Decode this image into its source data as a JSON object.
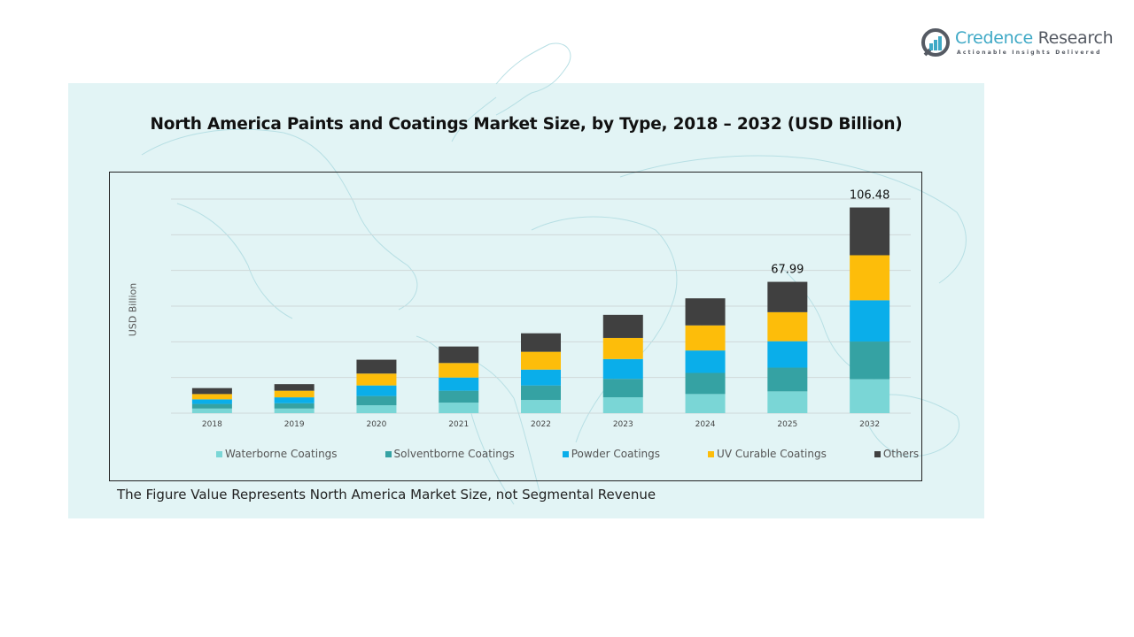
{
  "logo": {
    "name_part1": "Credence",
    "name_part2": " Research",
    "tagline": "Actionable Insights Delivered"
  },
  "footnote": "The Figure Value Represents North America Market Size, not Segmental Revenue",
  "colors": {
    "panel_background": "#e2f4f5",
    "Waterborne Coatings": "#7ad6d6",
    "Solventborne Coatings": "#35a2a3",
    "Powder Coatings": "#0aaeea",
    "UV Curable Coatings": "#fdbd0a",
    "Others": "#404040"
  },
  "chart_data": {
    "type": "bar",
    "stacked": true,
    "title": "North America Paints and Coatings Market Size, by Type, 2018 – 2032 (USD Billion)",
    "xlabel": "",
    "ylabel": "USD Billion",
    "categories": [
      "2018",
      "2019",
      "2020",
      "2021",
      "2022",
      "2023",
      "2024",
      "2025",
      "2032"
    ],
    "ylim": [
      0,
      120
    ],
    "gridlines": true,
    "y_tick_labels_shown": false,
    "legend_position": "bottom",
    "series": [
      {
        "name": "Waterborne Coatings",
        "values": [
          2.39,
          2.39,
          4.1,
          5.47,
          6.83,
          8.2,
          9.91,
          11.28,
          17.59
        ]
      },
      {
        "name": "Solventborne Coatings",
        "values": [
          2.39,
          2.73,
          4.78,
          6.15,
          7.52,
          9.57,
          10.93,
          12.3,
          19.49
        ]
      },
      {
        "name": "Powder Coatings",
        "values": [
          2.39,
          3.08,
          5.47,
          6.83,
          8.2,
          10.25,
          11.62,
          13.67,
          21.39
        ]
      },
      {
        "name": "UV Curable Coatings",
        "values": [
          2.73,
          3.42,
          6.15,
          7.52,
          9.23,
          10.93,
          12.98,
          15.03,
          23.29
        ]
      },
      {
        "name": "Others",
        "values": [
          3.08,
          3.42,
          7.18,
          8.54,
          9.57,
          11.96,
          14.01,
          15.71,
          24.72
        ]
      }
    ],
    "data_labels": [
      {
        "category": "2025",
        "text": "67.99"
      },
      {
        "category": "2032",
        "text": "106.48"
      }
    ]
  }
}
